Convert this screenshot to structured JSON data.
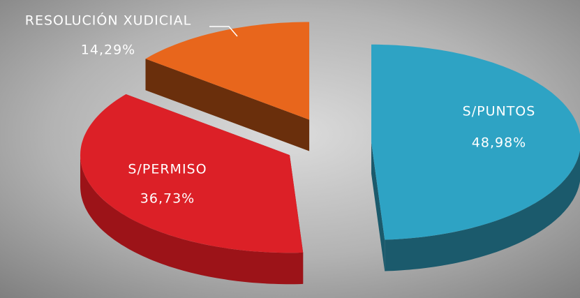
{
  "chart_data": {
    "type": "pie",
    "categories": [
      "S/PUNTOS",
      "S/PERMISO",
      "RESOLUCIÓN XUDICIAL"
    ],
    "values": [
      48.98,
      36.73,
      14.29
    ],
    "value_labels": [
      "48,98%",
      "36,73%",
      "14,29%"
    ],
    "colors": [
      "#2ea3c4",
      "#dc2027",
      "#e8661c"
    ],
    "side_colors": [
      "#1b5a6c",
      "#9c1318",
      "#6a2f0c"
    ]
  }
}
